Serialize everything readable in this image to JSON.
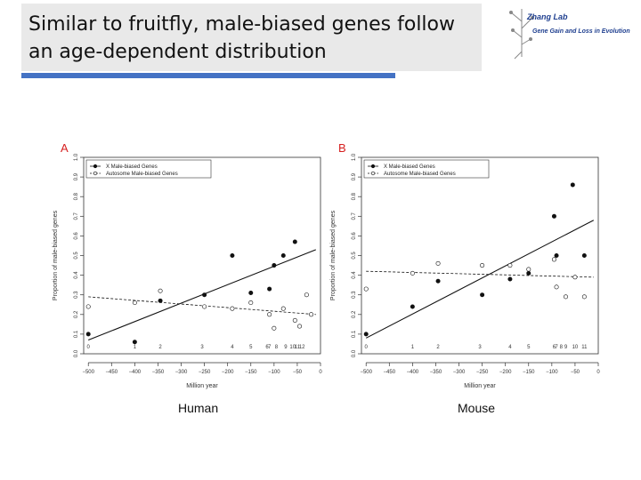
{
  "slide": {
    "title": "Similar to fruitfly, male-biased genes follow an age-dependent distribution"
  },
  "logo": {
    "lab": "Zhang Lab",
    "subtitle": "Gene Gain and Loss in Evolution"
  },
  "captions": {
    "left": "Human",
    "right": "Mouse"
  },
  "colors": {
    "accent_rule": "#4472c4",
    "panel_label": "#d62020",
    "title_bg": "#e9e9e9"
  },
  "chart_data": [
    {
      "type": "scatter",
      "panel_label": "A",
      "title": "",
      "xlabel": "Million year",
      "ylabel": "Proportion of male-biased genes",
      "xlim": [
        -510,
        0
      ],
      "ylim": [
        0,
        1
      ],
      "x_ticks": [
        -500,
        -450,
        -400,
        -350,
        -300,
        -250,
        -200,
        -150,
        -100,
        -50,
        0
      ],
      "y_ticks": [
        0.0,
        0.1,
        0.2,
        0.3,
        0.4,
        0.5,
        0.6,
        0.7,
        0.8,
        0.9,
        1.0
      ],
      "legend_position": "top-left",
      "age_labels": [
        {
          "text": "0",
          "x": -500
        },
        {
          "text": "1",
          "x": -400
        },
        {
          "text": "2",
          "x": -345
        },
        {
          "text": "3",
          "x": -255
        },
        {
          "text": "4",
          "x": -190
        },
        {
          "text": "5",
          "x": -150
        },
        {
          "text": "6",
          "x": -115
        },
        {
          "text": "7",
          "x": -110
        },
        {
          "text": "8",
          "x": -95
        },
        {
          "text": "9",
          "x": -75
        },
        {
          "text": "10",
          "x": -60
        },
        {
          "text": "11",
          "x": -50
        },
        {
          "text": "12",
          "x": -40
        }
      ],
      "series": [
        {
          "name": "X Male-biased Genes",
          "marker": "filled",
          "points": [
            [
              -500,
              0.1
            ],
            [
              -400,
              0.06
            ],
            [
              -345,
              0.27
            ],
            [
              -250,
              0.3
            ],
            [
              -190,
              0.5
            ],
            [
              -150,
              0.31
            ],
            [
              -110,
              0.33
            ],
            [
              -100,
              0.45
            ],
            [
              -80,
              0.5
            ],
            [
              -55,
              0.57
            ]
          ],
          "trend": [
            [
              -500,
              0.07
            ],
            [
              -10,
              0.53
            ]
          ]
        },
        {
          "name": "Autosome Male-biased Genes",
          "marker": "open",
          "points": [
            [
              -500,
              0.24
            ],
            [
              -400,
              0.26
            ],
            [
              -345,
              0.32
            ],
            [
              -250,
              0.24
            ],
            [
              -190,
              0.23
            ],
            [
              -150,
              0.26
            ],
            [
              -110,
              0.2
            ],
            [
              -100,
              0.13
            ],
            [
              -80,
              0.23
            ],
            [
              -55,
              0.17
            ],
            [
              -45,
              0.14
            ],
            [
              -30,
              0.3
            ],
            [
              -20,
              0.2
            ]
          ],
          "trend": [
            [
              -500,
              0.29
            ],
            [
              -10,
              0.2
            ]
          ]
        }
      ]
    },
    {
      "type": "scatter",
      "panel_label": "B",
      "title": "",
      "xlabel": "Million year",
      "ylabel": "Proportion of male-biased genes",
      "xlim": [
        -510,
        0
      ],
      "ylim": [
        0,
        1
      ],
      "x_ticks": [
        -500,
        -450,
        -400,
        -350,
        -300,
        -250,
        -200,
        -150,
        -100,
        -50,
        0
      ],
      "y_ticks": [
        0.0,
        0.1,
        0.2,
        0.3,
        0.4,
        0.5,
        0.6,
        0.7,
        0.8,
        0.9,
        1.0
      ],
      "legend_position": "top-left",
      "age_labels": [
        {
          "text": "0",
          "x": -500
        },
        {
          "text": "1",
          "x": -400
        },
        {
          "text": "2",
          "x": -345
        },
        {
          "text": "3",
          "x": -255
        },
        {
          "text": "4",
          "x": -190
        },
        {
          "text": "5",
          "x": -150
        },
        {
          "text": "6",
          "x": -95
        },
        {
          "text": "7",
          "x": -90
        },
        {
          "text": "8",
          "x": -80
        },
        {
          "text": "9",
          "x": -70
        },
        {
          "text": "10",
          "x": -50
        },
        {
          "text": "11",
          "x": -30
        }
      ],
      "series": [
        {
          "name": "X Male-biased Genes",
          "marker": "filled",
          "points": [
            [
              -500,
              0.1
            ],
            [
              -400,
              0.24
            ],
            [
              -345,
              0.37
            ],
            [
              -250,
              0.3
            ],
            [
              -190,
              0.38
            ],
            [
              -150,
              0.41
            ],
            [
              -95,
              0.7
            ],
            [
              -90,
              0.5
            ],
            [
              -55,
              0.86
            ],
            [
              -30,
              0.5
            ]
          ],
          "trend": [
            [
              -500,
              0.08
            ],
            [
              -10,
              0.68
            ]
          ]
        },
        {
          "name": "Autosome Male-biased Genes",
          "marker": "open",
          "points": [
            [
              -500,
              0.33
            ],
            [
              -400,
              0.41
            ],
            [
              -345,
              0.46
            ],
            [
              -250,
              0.45
            ],
            [
              -190,
              0.45
            ],
            [
              -150,
              0.43
            ],
            [
              -95,
              0.48
            ],
            [
              -90,
              0.34
            ],
            [
              -70,
              0.29
            ],
            [
              -50,
              0.39
            ],
            [
              -30,
              0.29
            ]
          ],
          "trend": [
            [
              -500,
              0.42
            ],
            [
              -10,
              0.39
            ]
          ]
        }
      ]
    }
  ]
}
